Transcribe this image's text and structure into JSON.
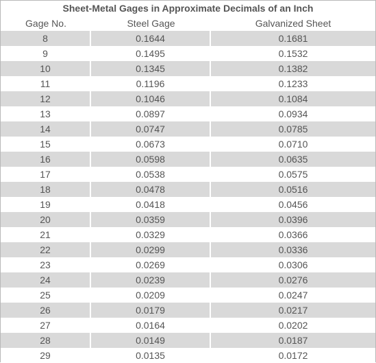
{
  "title": "Sheet-Metal Gages in Approximate Decimals of an Inch",
  "headers": [
    "Gage No.",
    "Steel Gage",
    "Galvanized Sheet"
  ],
  "rows": [
    [
      "8",
      "0.1644",
      "0.1681"
    ],
    [
      "9",
      "0.1495",
      "0.1532"
    ],
    [
      "10",
      "0.1345",
      "0.1382"
    ],
    [
      "11",
      "0.1196",
      "0.1233"
    ],
    [
      "12",
      "0.1046",
      "0.1084"
    ],
    [
      "13",
      "0.0897",
      "0.0934"
    ],
    [
      "14",
      "0.0747",
      "0.0785"
    ],
    [
      "15",
      "0.0673",
      "0.0710"
    ],
    [
      "16",
      "0.0598",
      "0.0635"
    ],
    [
      "17",
      "0.0538",
      "0.0575"
    ],
    [
      "18",
      "0.0478",
      "0.0516"
    ],
    [
      "19",
      "0.0418",
      "0.0456"
    ],
    [
      "20",
      "0.0359",
      "0.0396"
    ],
    [
      "21",
      "0.0329",
      "0.0366"
    ],
    [
      "22",
      "0.0299",
      "0.0336"
    ],
    [
      "23",
      "0.0269",
      "0.0306"
    ],
    [
      "24",
      "0.0239",
      "0.0276"
    ],
    [
      "25",
      "0.0209",
      "0.0247"
    ],
    [
      "26",
      "0.0179",
      "0.0217"
    ],
    [
      "27",
      "0.0164",
      "0.0202"
    ],
    [
      "28",
      "0.0149",
      "0.0187"
    ],
    [
      "29",
      "0.0135",
      "0.0172"
    ]
  ],
  "colors": {
    "stripe": "#d9d9d9",
    "text": "#555555",
    "border": "#b8b8b8"
  }
}
